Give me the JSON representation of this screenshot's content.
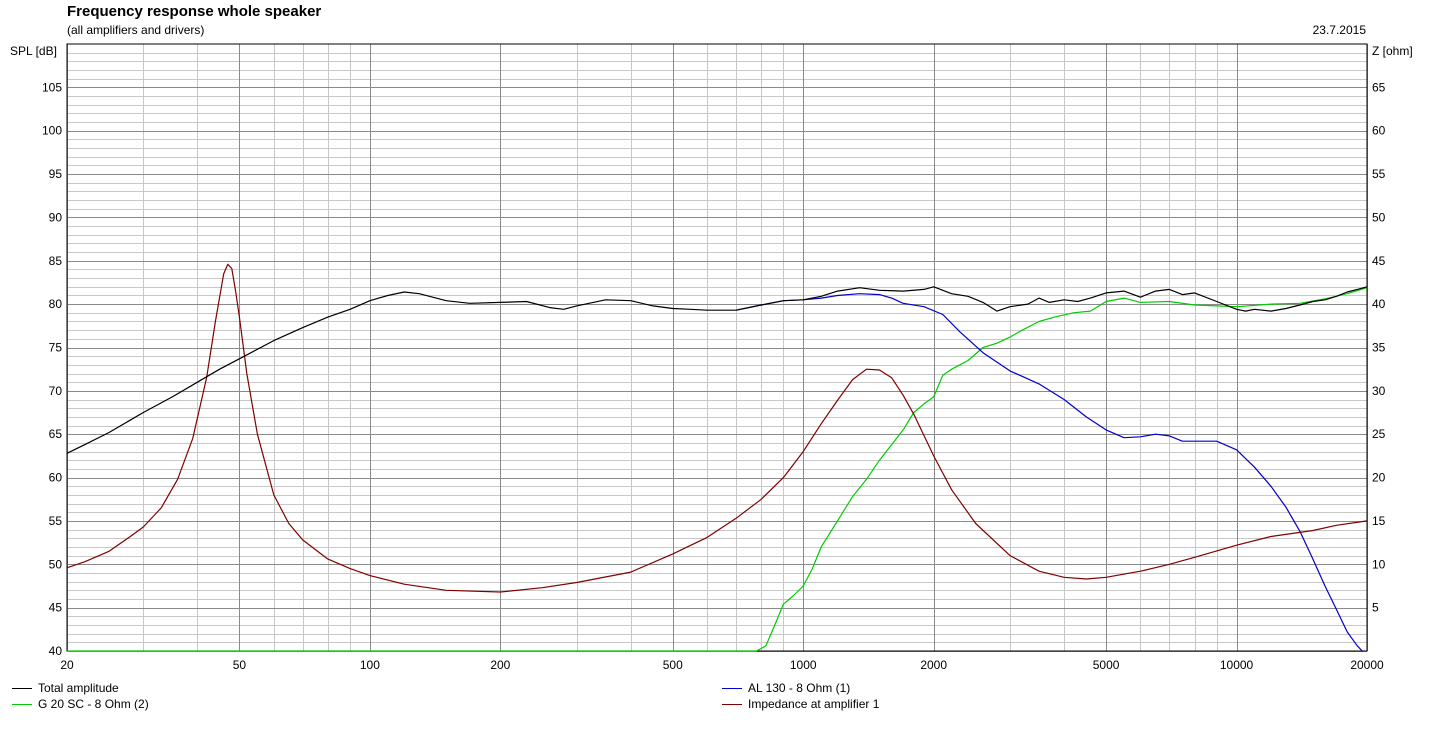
{
  "header": {
    "title": "Frequency response whole speaker",
    "subtitle": "(all amplifiers and drivers)",
    "date": "23.7.2015"
  },
  "chart_data": {
    "type": "line",
    "title": "Frequency response whole speaker",
    "subtitle": "(all amplifiers and drivers)",
    "xlabel": "",
    "x_scale": "log",
    "xlim": [
      20,
      20000
    ],
    "x_ticks": [
      20,
      50,
      100,
      200,
      500,
      1000,
      2000,
      5000,
      10000,
      20000
    ],
    "x_tick_labels": [
      "20",
      "50",
      "100",
      "200",
      "500",
      "1000",
      "2000",
      "5000",
      "10000",
      "20000"
    ],
    "y_left": {
      "label": "SPL [dB]",
      "lim": [
        40,
        110
      ],
      "ticks": [
        40,
        45,
        50,
        55,
        60,
        65,
        70,
        75,
        80,
        85,
        90,
        95,
        100,
        105
      ],
      "tick_labels": [
        "40",
        "45",
        "50",
        "55",
        "60",
        "65",
        "70",
        "75",
        "80",
        "85",
        "90",
        "95",
        "100",
        "105"
      ]
    },
    "y_right": {
      "label": "Z [ohm]",
      "lim": [
        0,
        70
      ],
      "ticks": [
        5,
        10,
        15,
        20,
        25,
        30,
        35,
        40,
        45,
        50,
        55,
        60,
        65
      ],
      "tick_labels": [
        "5",
        "10",
        "15",
        "20",
        "25",
        "30",
        "35",
        "40",
        "45",
        "50",
        "55",
        "60",
        "65"
      ]
    },
    "grid": true,
    "legend_position": "bottom",
    "series": [
      {
        "name": "Total amplitude",
        "color": "#000000",
        "axis": "left",
        "points": [
          [
            20,
            62.8
          ],
          [
            22,
            63.8
          ],
          [
            25,
            65.2
          ],
          [
            30,
            67.5
          ],
          [
            35,
            69.3
          ],
          [
            40,
            71.0
          ],
          [
            45,
            72.5
          ],
          [
            50,
            73.7
          ],
          [
            60,
            75.8
          ],
          [
            70,
            77.3
          ],
          [
            80,
            78.5
          ],
          [
            90,
            79.4
          ],
          [
            100,
            80.4
          ],
          [
            110,
            81.0
          ],
          [
            120,
            81.4
          ],
          [
            130,
            81.2
          ],
          [
            150,
            80.4
          ],
          [
            170,
            80.1
          ],
          [
            200,
            80.2
          ],
          [
            230,
            80.3
          ],
          [
            260,
            79.6
          ],
          [
            280,
            79.4
          ],
          [
            300,
            79.8
          ],
          [
            350,
            80.5
          ],
          [
            400,
            80.4
          ],
          [
            450,
            79.8
          ],
          [
            500,
            79.5
          ],
          [
            550,
            79.4
          ],
          [
            600,
            79.3
          ],
          [
            700,
            79.3
          ],
          [
            800,
            79.9
          ],
          [
            900,
            80.4
          ],
          [
            1000,
            80.5
          ],
          [
            1100,
            80.9
          ],
          [
            1200,
            81.5
          ],
          [
            1350,
            81.9
          ],
          [
            1500,
            81.6
          ],
          [
            1700,
            81.5
          ],
          [
            1900,
            81.7
          ],
          [
            2000,
            82.0
          ],
          [
            2200,
            81.2
          ],
          [
            2400,
            80.9
          ],
          [
            2600,
            80.2
          ],
          [
            2800,
            79.2
          ],
          [
            3000,
            79.7
          ],
          [
            3300,
            80.0
          ],
          [
            3500,
            80.7
          ],
          [
            3700,
            80.2
          ],
          [
            4000,
            80.5
          ],
          [
            4300,
            80.3
          ],
          [
            4600,
            80.7
          ],
          [
            5000,
            81.3
          ],
          [
            5500,
            81.5
          ],
          [
            6000,
            80.8
          ],
          [
            6500,
            81.5
          ],
          [
            7000,
            81.7
          ],
          [
            7500,
            81.1
          ],
          [
            8000,
            81.3
          ],
          [
            9000,
            80.3
          ],
          [
            10000,
            79.4
          ],
          [
            10500,
            79.2
          ],
          [
            11000,
            79.4
          ],
          [
            12000,
            79.2
          ],
          [
            13000,
            79.5
          ],
          [
            14000,
            79.9
          ],
          [
            15000,
            80.3
          ],
          [
            16000,
            80.5
          ],
          [
            17000,
            80.9
          ],
          [
            18000,
            81.4
          ],
          [
            19000,
            81.7
          ],
          [
            20000,
            82.0
          ]
        ]
      },
      {
        "name": "AL 130 - 8 Ohm (1)",
        "color": "#0000cc",
        "axis": "left",
        "points": [
          [
            700,
            79.3
          ],
          [
            800,
            79.9
          ],
          [
            900,
            80.4
          ],
          [
            1000,
            80.5
          ],
          [
            1100,
            80.7
          ],
          [
            1200,
            81.0
          ],
          [
            1350,
            81.2
          ],
          [
            1500,
            81.1
          ],
          [
            1600,
            80.7
          ],
          [
            1700,
            80.1
          ],
          [
            1900,
            79.7
          ],
          [
            2100,
            78.8
          ],
          [
            2300,
            76.8
          ],
          [
            2600,
            74.4
          ],
          [
            3000,
            72.3
          ],
          [
            3500,
            70.8
          ],
          [
            4000,
            69.0
          ],
          [
            4500,
            67.0
          ],
          [
            5000,
            65.5
          ],
          [
            5500,
            64.6
          ],
          [
            6000,
            64.7
          ],
          [
            6500,
            65.0
          ],
          [
            7000,
            64.8
          ],
          [
            7500,
            64.2
          ],
          [
            8000,
            64.2
          ],
          [
            9000,
            64.2
          ],
          [
            10000,
            63.2
          ],
          [
            11000,
            61.2
          ],
          [
            12000,
            59.0
          ],
          [
            13000,
            56.6
          ],
          [
            14000,
            53.8
          ],
          [
            15000,
            50.6
          ],
          [
            16000,
            47.5
          ],
          [
            17000,
            44.8
          ],
          [
            18000,
            42.2
          ],
          [
            19000,
            40.6
          ],
          [
            19500,
            40.0
          ]
        ]
      },
      {
        "name": "G 20 SC - 8 Ohm (2)",
        "color": "#00cc00",
        "axis": "left",
        "points": [
          [
            20,
            40.0
          ],
          [
            100,
            40.0
          ],
          [
            500,
            40.0
          ],
          [
            780,
            40.0
          ],
          [
            820,
            40.6
          ],
          [
            860,
            43.0
          ],
          [
            900,
            45.4
          ],
          [
            950,
            46.4
          ],
          [
            1000,
            47.5
          ],
          [
            1050,
            49.5
          ],
          [
            1100,
            52.0
          ],
          [
            1200,
            55.0
          ],
          [
            1300,
            57.8
          ],
          [
            1400,
            59.8
          ],
          [
            1500,
            62.0
          ],
          [
            1600,
            63.8
          ],
          [
            1700,
            65.5
          ],
          [
            1800,
            67.5
          ],
          [
            1900,
            68.5
          ],
          [
            2000,
            69.3
          ],
          [
            2100,
            71.8
          ],
          [
            2200,
            72.5
          ],
          [
            2300,
            73.0
          ],
          [
            2400,
            73.5
          ],
          [
            2600,
            75.0
          ],
          [
            2800,
            75.5
          ],
          [
            3000,
            76.2
          ],
          [
            3200,
            77.0
          ],
          [
            3500,
            78.0
          ],
          [
            3800,
            78.5
          ],
          [
            4200,
            79.0
          ],
          [
            4600,
            79.2
          ],
          [
            5000,
            80.3
          ],
          [
            5500,
            80.7
          ],
          [
            6000,
            80.2
          ],
          [
            7000,
            80.3
          ],
          [
            8000,
            79.9
          ],
          [
            9000,
            79.8
          ],
          [
            10000,
            79.7
          ],
          [
            12000,
            80.0
          ],
          [
            14000,
            80.1
          ],
          [
            16000,
            80.6
          ],
          [
            18000,
            81.2
          ],
          [
            20000,
            81.9
          ]
        ]
      },
      {
        "name": "Impedance at amplifier 1",
        "color": "#800000",
        "axis": "right",
        "points": [
          [
            20,
            9.6
          ],
          [
            22,
            10.3
          ],
          [
            25,
            11.5
          ],
          [
            28,
            13.2
          ],
          [
            30,
            14.3
          ],
          [
            33,
            16.5
          ],
          [
            36,
            19.8
          ],
          [
            39,
            24.5
          ],
          [
            42,
            31.5
          ],
          [
            44,
            38.0
          ],
          [
            46,
            43.5
          ],
          [
            47,
            44.6
          ],
          [
            48,
            44.1
          ],
          [
            49,
            41.5
          ],
          [
            50,
            38.5
          ],
          [
            52,
            32.0
          ],
          [
            55,
            25.0
          ],
          [
            60,
            18.0
          ],
          [
            65,
            14.7
          ],
          [
            70,
            12.8
          ],
          [
            80,
            10.6
          ],
          [
            90,
            9.5
          ],
          [
            100,
            8.7
          ],
          [
            120,
            7.7
          ],
          [
            150,
            7.0
          ],
          [
            200,
            6.8
          ],
          [
            250,
            7.3
          ],
          [
            300,
            7.9
          ],
          [
            400,
            9.1
          ],
          [
            500,
            11.2
          ],
          [
            600,
            13.1
          ],
          [
            700,
            15.3
          ],
          [
            800,
            17.5
          ],
          [
            900,
            20.0
          ],
          [
            1000,
            23.0
          ],
          [
            1100,
            26.2
          ],
          [
            1200,
            28.9
          ],
          [
            1300,
            31.3
          ],
          [
            1400,
            32.5
          ],
          [
            1500,
            32.4
          ],
          [
            1600,
            31.5
          ],
          [
            1700,
            29.5
          ],
          [
            1800,
            27.3
          ],
          [
            2000,
            22.5
          ],
          [
            2200,
            18.6
          ],
          [
            2500,
            14.7
          ],
          [
            3000,
            11.0
          ],
          [
            3500,
            9.2
          ],
          [
            4000,
            8.5
          ],
          [
            4500,
            8.3
          ],
          [
            5000,
            8.5
          ],
          [
            6000,
            9.2
          ],
          [
            7000,
            10.0
          ],
          [
            8000,
            10.8
          ],
          [
            10000,
            12.2
          ],
          [
            12000,
            13.2
          ],
          [
            15000,
            13.9
          ],
          [
            17000,
            14.5
          ],
          [
            20000,
            15.0
          ]
        ]
      }
    ]
  }
}
